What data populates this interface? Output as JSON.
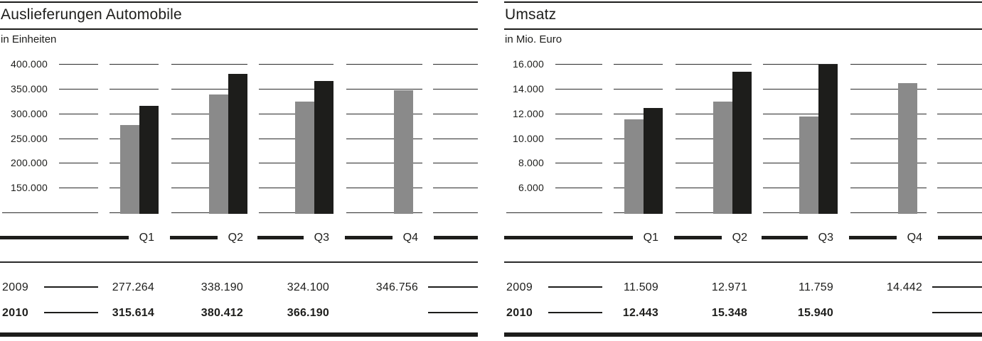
{
  "colors": {
    "series_2009_bar": "#8a8a8a",
    "series_2010_bar": "#1d1d1b",
    "text": "#1d1d1b",
    "rule": "#1d1d1b",
    "background": "#ffffff"
  },
  "chart_data": [
    {
      "id": "auslieferungen-automobile",
      "type": "bar",
      "title": "Auslieferungen Automobile",
      "subtitle": "in Einheiten",
      "categories": [
        "Q1",
        "Q2",
        "Q3",
        "Q4"
      ],
      "series": [
        {
          "name": "2009",
          "color": "#8a8a8a",
          "emphasis": false,
          "values": [
            277264,
            338190,
            324100,
            346756
          ],
          "display": [
            "277.264",
            "338.190",
            "324.100",
            "346.756"
          ]
        },
        {
          "name": "2010",
          "color": "#1d1d1b",
          "emphasis": true,
          "values": [
            315614,
            380412,
            366190,
            null
          ],
          "display": [
            "315.614",
            "380.412",
            "366.190",
            ""
          ]
        }
      ],
      "y_axis": {
        "min": 100000,
        "max": 400000,
        "step": 50000,
        "tick_labels": [
          "400.000",
          "350.000",
          "300.000",
          "250.000",
          "200.000",
          "150.000"
        ]
      },
      "ylim": [
        100000,
        400000
      ],
      "grid": "horizontal-segmented",
      "legend": "values-table-below"
    },
    {
      "id": "umsatz",
      "type": "bar",
      "title": "Umsatz",
      "subtitle": "in Mio. Euro",
      "categories": [
        "Q1",
        "Q2",
        "Q3",
        "Q4"
      ],
      "series": [
        {
          "name": "2009",
          "color": "#8a8a8a",
          "emphasis": false,
          "values": [
            11509,
            12971,
            11759,
            14442
          ],
          "display": [
            "11.509",
            "12.971",
            "11.759",
            "14.442"
          ]
        },
        {
          "name": "2010",
          "color": "#1d1d1b",
          "emphasis": true,
          "values": [
            12443,
            15348,
            15940,
            null
          ],
          "display": [
            "12.443",
            "15.348",
            "15.940",
            ""
          ]
        }
      ],
      "y_axis": {
        "min": 4000,
        "max": 16000,
        "step": 2000,
        "tick_labels": [
          "16.000",
          "14.000",
          "12.000",
          "10.000",
          "8.000",
          "6.000"
        ]
      },
      "ylim": [
        4000,
        16000
      ],
      "grid": "horizontal-segmented",
      "legend": "values-table-below"
    }
  ]
}
